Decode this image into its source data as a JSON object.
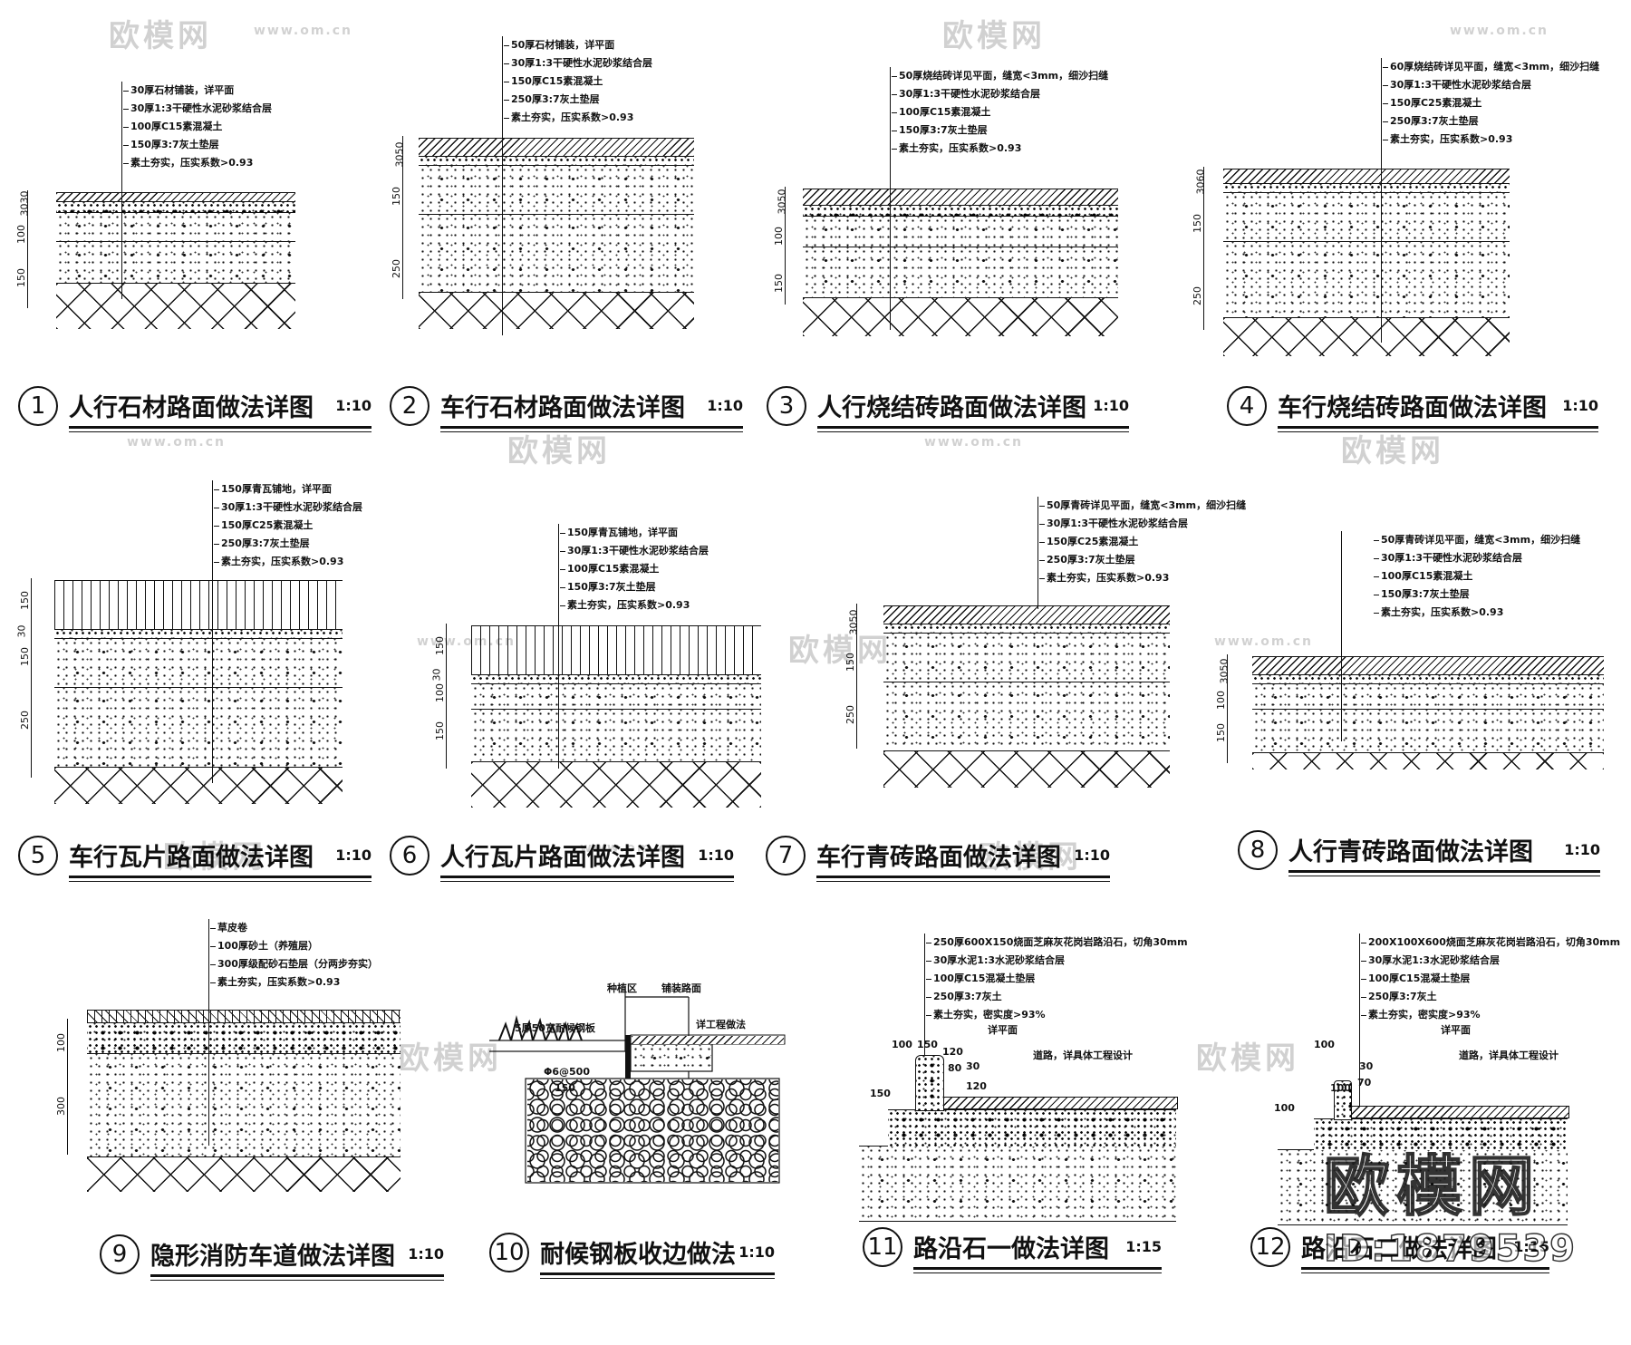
{
  "details": [
    {
      "num": "1",
      "title": "人行石材路面做法详图",
      "scale": "1:10",
      "notes": [
        "30厚石材铺装，详平面",
        "30厚1:3干硬性水泥砂浆结合层",
        "100厚C15素混凝土",
        "150厚3:7灰土垫层",
        "素土夯实，压实系数>0.93"
      ],
      "dims": [
        "3030",
        "100",
        "150"
      ]
    },
    {
      "num": "2",
      "title": "车行石材路面做法详图",
      "scale": "1:10",
      "notes": [
        "50厚石材铺装，详平面",
        "30厚1:3干硬性水泥砂浆结合层",
        "150厚C15素混凝土",
        "250厚3:7灰土垫层",
        "素土夯实，压实系数>0.93"
      ],
      "dims": [
        "3050",
        "150",
        "250"
      ]
    },
    {
      "num": "3",
      "title": "人行烧结砖路面做法详图",
      "scale": "1:10",
      "notes": [
        "50厚烧结砖详见平面，缝宽<3mm，细沙扫缝",
        "30厚1:3干硬性水泥砂浆结合层",
        "100厚C15素混凝土",
        "150厚3:7灰土垫层",
        "素土夯实，压实系数>0.93"
      ],
      "dims": [
        "3050",
        "100",
        "150"
      ]
    },
    {
      "num": "4",
      "title": "车行烧结砖路面做法详图",
      "scale": "1:10",
      "notes": [
        "60厚烧结砖详见平面，缝宽<3mm，细沙扫缝",
        "30厚1:3干硬性水泥砂浆结合层",
        "150厚C25素混凝土",
        "250厚3:7灰土垫层",
        "素土夯实，压实系数>0.93"
      ],
      "dims": [
        "3060",
        "150",
        "250"
      ]
    },
    {
      "num": "5",
      "title": "车行瓦片路面做法详图",
      "scale": "1:10",
      "notes": [
        "150厚青瓦铺地，详平面",
        "30厚1:3干硬性水泥砂浆结合层",
        "150厚C25素混凝土",
        "250厚3:7灰土垫层",
        "素土夯实，压实系数>0.93"
      ],
      "dims": [
        "150",
        "30",
        "150",
        "250"
      ]
    },
    {
      "num": "6",
      "title": "人行瓦片路面做法详图",
      "scale": "1:10",
      "notes": [
        "150厚青瓦铺地，详平面",
        "30厚1:3干硬性水泥砂浆结合层",
        "100厚C15素混凝土",
        "150厚3:7灰土垫层",
        "素土夯实，压实系数>0.93"
      ],
      "dims": [
        "150",
        "30",
        "100",
        "150"
      ]
    },
    {
      "num": "7",
      "title": "车行青砖路面做法详图",
      "scale": "1:10",
      "notes": [
        "50厚青砖详见平面，缝宽<3mm，细沙扫缝",
        "30厚1:3干硬性水泥砂浆结合层",
        "150厚C25素混凝土",
        "250厚3:7灰土垫层",
        "素土夯实，压实系数>0.93"
      ],
      "dims": [
        "3050",
        "150",
        "250"
      ]
    },
    {
      "num": "8",
      "title": "人行青砖路面做法详图",
      "scale": "1:10",
      "notes": [
        "50厚青砖详见平面，缝宽<3mm，细沙扫缝",
        "30厚1:3干硬性水泥砂浆结合层",
        "100厚C15素混凝土",
        "150厚3:7灰土垫层",
        "素土夯实，压实系数>0.93"
      ],
      "dims": [
        "3050",
        "100",
        "150"
      ]
    },
    {
      "num": "9",
      "title": "隐形消防车道做法详图",
      "scale": "1:10",
      "notes": [
        "草皮卷",
        "100厚砂土（养殖层）",
        "300厚级配砂石垫层（分两步夯实）",
        "素土夯实，压实系数>0.93"
      ],
      "dims": [
        "100",
        "300"
      ]
    },
    {
      "num": "10",
      "title": "耐候钢板收边做法",
      "scale": "1:10",
      "labels": {
        "zone_plant": "种植区",
        "zone_paving": "铺装路面",
        "plate": "5厚50宽耐候钢板",
        "detail_ref": "详工程做法",
        "pipe": "Φ6@500",
        "dim": "150"
      }
    },
    {
      "num": "11",
      "title": "路沿石一做法详图",
      "scale": "1:15",
      "notes": [
        "250厚600X150烧面芝麻灰花岗岩路沿石，切角30mm",
        "30厚水泥1:3水泥砂浆结合层",
        "100厚C15混凝土垫层",
        "250厚3:7灰土",
        "素土夯实，密实度>93%"
      ],
      "labels": {
        "plan": "详平面",
        "road": "道路，详具体工程设计",
        "d1": "100",
        "d2": "150",
        "d3": "120",
        "d4": "80",
        "d5": "150",
        "d6": "30",
        "d7": "120"
      }
    },
    {
      "num": "12",
      "title": "路沿石二做法详图",
      "scale": "1:15",
      "notes": [
        "200X100X600烧面芝麻灰花岗岩路沿石，切角30mm",
        "30厚水泥1:3水泥砂浆结合层",
        "100厚C15混凝土垫层",
        "250厚3:7灰土",
        "素土夯实，密实度>93%"
      ],
      "labels": {
        "plan": "详平面",
        "road": "道路，详具体工程设计",
        "d1": "100",
        "d2": "100",
        "d3": "70",
        "d4": "30",
        "d5": "100"
      }
    }
  ],
  "watermark": {
    "site": "www.om.cn",
    "brand": "欧模网",
    "id": "ID:1879539"
  },
  "colors": {
    "ink": "#111111",
    "paper": "#ffffff"
  }
}
